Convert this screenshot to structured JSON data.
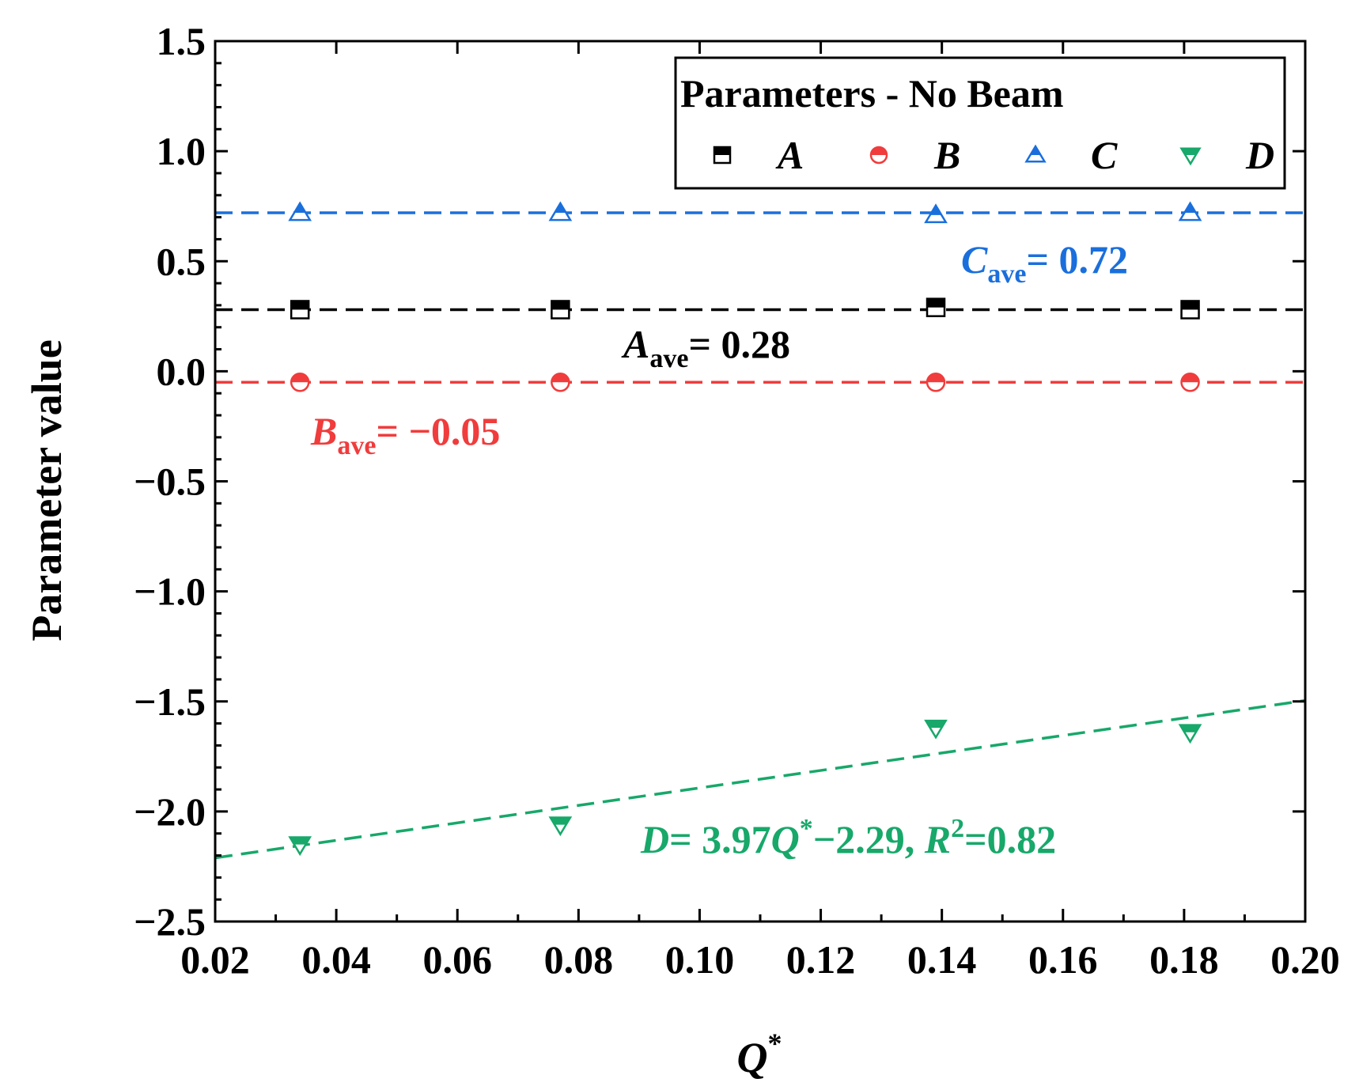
{
  "chart_data": {
    "type": "scatter",
    "title": "",
    "xlabel": "Q",
    "xlabel_sup": "*",
    "ylabel": "Parameter value",
    "xlim": [
      0.02,
      0.2
    ],
    "ylim": [
      -2.5,
      1.5
    ],
    "x_ticks": [
      "0.02",
      "0.04",
      "0.06",
      "0.08",
      "0.10",
      "0.12",
      "0.14",
      "0.16",
      "0.18",
      "0.20"
    ],
    "y_ticks": [
      "−2.5",
      "−2.0",
      "−1.5",
      "−1.0",
      "−0.5",
      "0.0",
      "0.5",
      "1.0",
      "1.5"
    ],
    "x_tick_values": [
      0.02,
      0.04,
      0.06,
      0.08,
      0.1,
      0.12,
      0.14,
      0.16,
      0.18,
      0.2
    ],
    "y_tick_values": [
      -2.5,
      -2.0,
      -1.5,
      -1.0,
      -0.5,
      0.0,
      0.5,
      1.0,
      1.5
    ],
    "legend": {
      "title": "Parameters - No Beam",
      "position": "top-right",
      "entries": [
        "A",
        "B",
        "C",
        "D"
      ]
    },
    "series": [
      {
        "name": "A",
        "color": "#000000",
        "marker": "square",
        "x": [
          0.034,
          0.077,
          0.139,
          0.181
        ],
        "y": [
          0.28,
          0.28,
          0.29,
          0.28
        ]
      },
      {
        "name": "B",
        "color": "#f03c3c",
        "marker": "circle",
        "x": [
          0.034,
          0.077,
          0.139,
          0.181
        ],
        "y": [
          -0.05,
          -0.05,
          -0.05,
          -0.05
        ]
      },
      {
        "name": "C",
        "color": "#1a6fdc",
        "marker": "triangle-up",
        "x": [
          0.034,
          0.077,
          0.139,
          0.181
        ],
        "y": [
          0.72,
          0.72,
          0.71,
          0.72
        ]
      },
      {
        "name": "D",
        "color": "#17a86a",
        "marker": "triangle-down",
        "x": [
          0.034,
          0.077,
          0.139,
          0.181
        ],
        "y": [
          -2.15,
          -2.06,
          -1.62,
          -1.64
        ]
      }
    ],
    "reference_lines": [
      {
        "series": "A",
        "type": "horizontal",
        "y": 0.28,
        "color": "#000000"
      },
      {
        "series": "B",
        "type": "horizontal",
        "y": -0.05,
        "color": "#f03c3c"
      },
      {
        "series": "C",
        "type": "horizontal",
        "y": 0.72,
        "color": "#1a6fdc"
      },
      {
        "series": "D",
        "type": "linear-fit",
        "slope": 3.97,
        "intercept": -2.29,
        "color": "#17a86a"
      }
    ],
    "annotations": {
      "a_ave": {
        "var": "A",
        "sub": "ave",
        "text": "= 0.28",
        "color": "#000000"
      },
      "b_ave": {
        "var": "B",
        "sub": "ave",
        "text": "= −0.05",
        "color": "#f03c3c"
      },
      "c_ave": {
        "var": "C",
        "sub": "ave",
        "text": "= 0.72",
        "color": "#1a6fdc"
      },
      "d_fit": {
        "var": "D",
        "text1": "= 3.97",
        "qvar": "Q",
        "qsup": "*",
        "text2": "−2.29, ",
        "rvar": "R",
        "rsup": "2",
        "text3": "=0.82",
        "color": "#17a86a"
      }
    }
  }
}
